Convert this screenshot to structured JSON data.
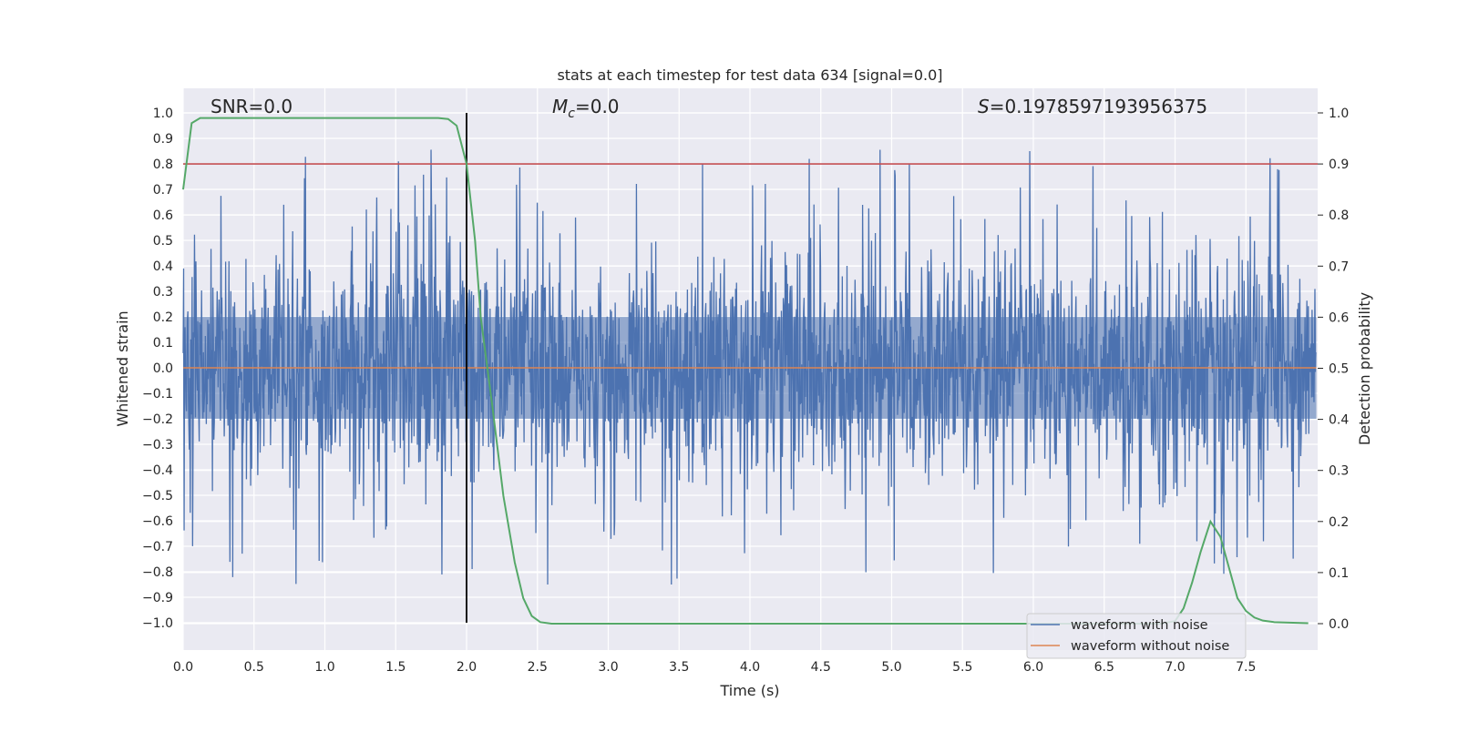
{
  "chart_data": {
    "type": "line",
    "title": "stats at each timestep for test data 634 [signal=0.0]",
    "xlabel": "Time (s)",
    "ylabel": "Whitened strain",
    "y2label": "Detection probability",
    "xlim": [
      0.0,
      8.0
    ],
    "ylim": [
      -1.1,
      1.1
    ],
    "y2lim": [
      -0.05,
      1.05
    ],
    "xticks": [
      "0.0",
      "0.5",
      "1.0",
      "1.5",
      "2.0",
      "2.5",
      "3.0",
      "3.5",
      "4.0",
      "4.5",
      "5.0",
      "5.5",
      "6.0",
      "6.5",
      "7.0",
      "7.5"
    ],
    "yticks": [
      "1.0",
      "0.9",
      "0.8",
      "0.7",
      "0.6",
      "0.5",
      "0.4",
      "0.3",
      "0.2",
      "0.1",
      "0.0",
      "−0.1",
      "−0.2",
      "−0.3",
      "−0.4",
      "−0.5",
      "−0.6",
      "−0.7",
      "−0.8",
      "−0.9",
      "−1.0"
    ],
    "y2ticks": [
      "1.0",
      "0.9",
      "0.8",
      "0.7",
      "0.6",
      "0.5",
      "0.4",
      "0.3",
      "0.2",
      "0.1",
      "0.0"
    ],
    "annotations": {
      "snr": "SNR=0.0",
      "mc_symbol": "M",
      "mc_sub": "c",
      "mc_value": "=0.0",
      "s_symbol": "S",
      "s_value": "=0.1978597193956375"
    },
    "threshold": {
      "y2": 0.9,
      "color": "#c44e52"
    },
    "vline": {
      "x": 2.0,
      "ymin": -1.0,
      "ymax": 1.0,
      "color": "#000000"
    },
    "series": [
      {
        "name": "waveform with noise",
        "color": "#4c72b0",
        "axis": "left",
        "noise_std": 0.22,
        "spike_envelope": [
          0.45,
          0.6,
          0.75,
          0.86
        ],
        "description": "whitened noise, dense"
      },
      {
        "name": "waveform without noise",
        "color": "#dd8452",
        "axis": "left",
        "x": [
          0.0,
          8.0
        ],
        "values": [
          0.0,
          0.0
        ]
      },
      {
        "name": "detection probability",
        "color": "#55a868",
        "axis": "right",
        "x": [
          0.0,
          0.06,
          0.12,
          0.5,
          1.0,
          1.5,
          1.8,
          1.87,
          1.93,
          2.0,
          2.06,
          2.1,
          2.18,
          2.26,
          2.34,
          2.4,
          2.46,
          2.52,
          2.6,
          3.0,
          5.0,
          6.9,
          7.0,
          7.06,
          7.12,
          7.18,
          7.25,
          7.32,
          7.38,
          7.44,
          7.5,
          7.56,
          7.62,
          7.7,
          7.94
        ],
        "values": [
          0.85,
          0.98,
          0.99,
          0.99,
          0.99,
          0.99,
          0.99,
          0.988,
          0.975,
          0.9,
          0.75,
          0.6,
          0.43,
          0.25,
          0.12,
          0.05,
          0.015,
          0.003,
          0.0,
          0.0,
          0.0,
          0.0,
          0.005,
          0.03,
          0.08,
          0.14,
          0.2,
          0.17,
          0.11,
          0.05,
          0.025,
          0.012,
          0.006,
          0.003,
          0.001
        ]
      }
    ],
    "legend": {
      "position": "lower-right",
      "entries": [
        "waveform with noise",
        "waveform without noise"
      ]
    }
  }
}
